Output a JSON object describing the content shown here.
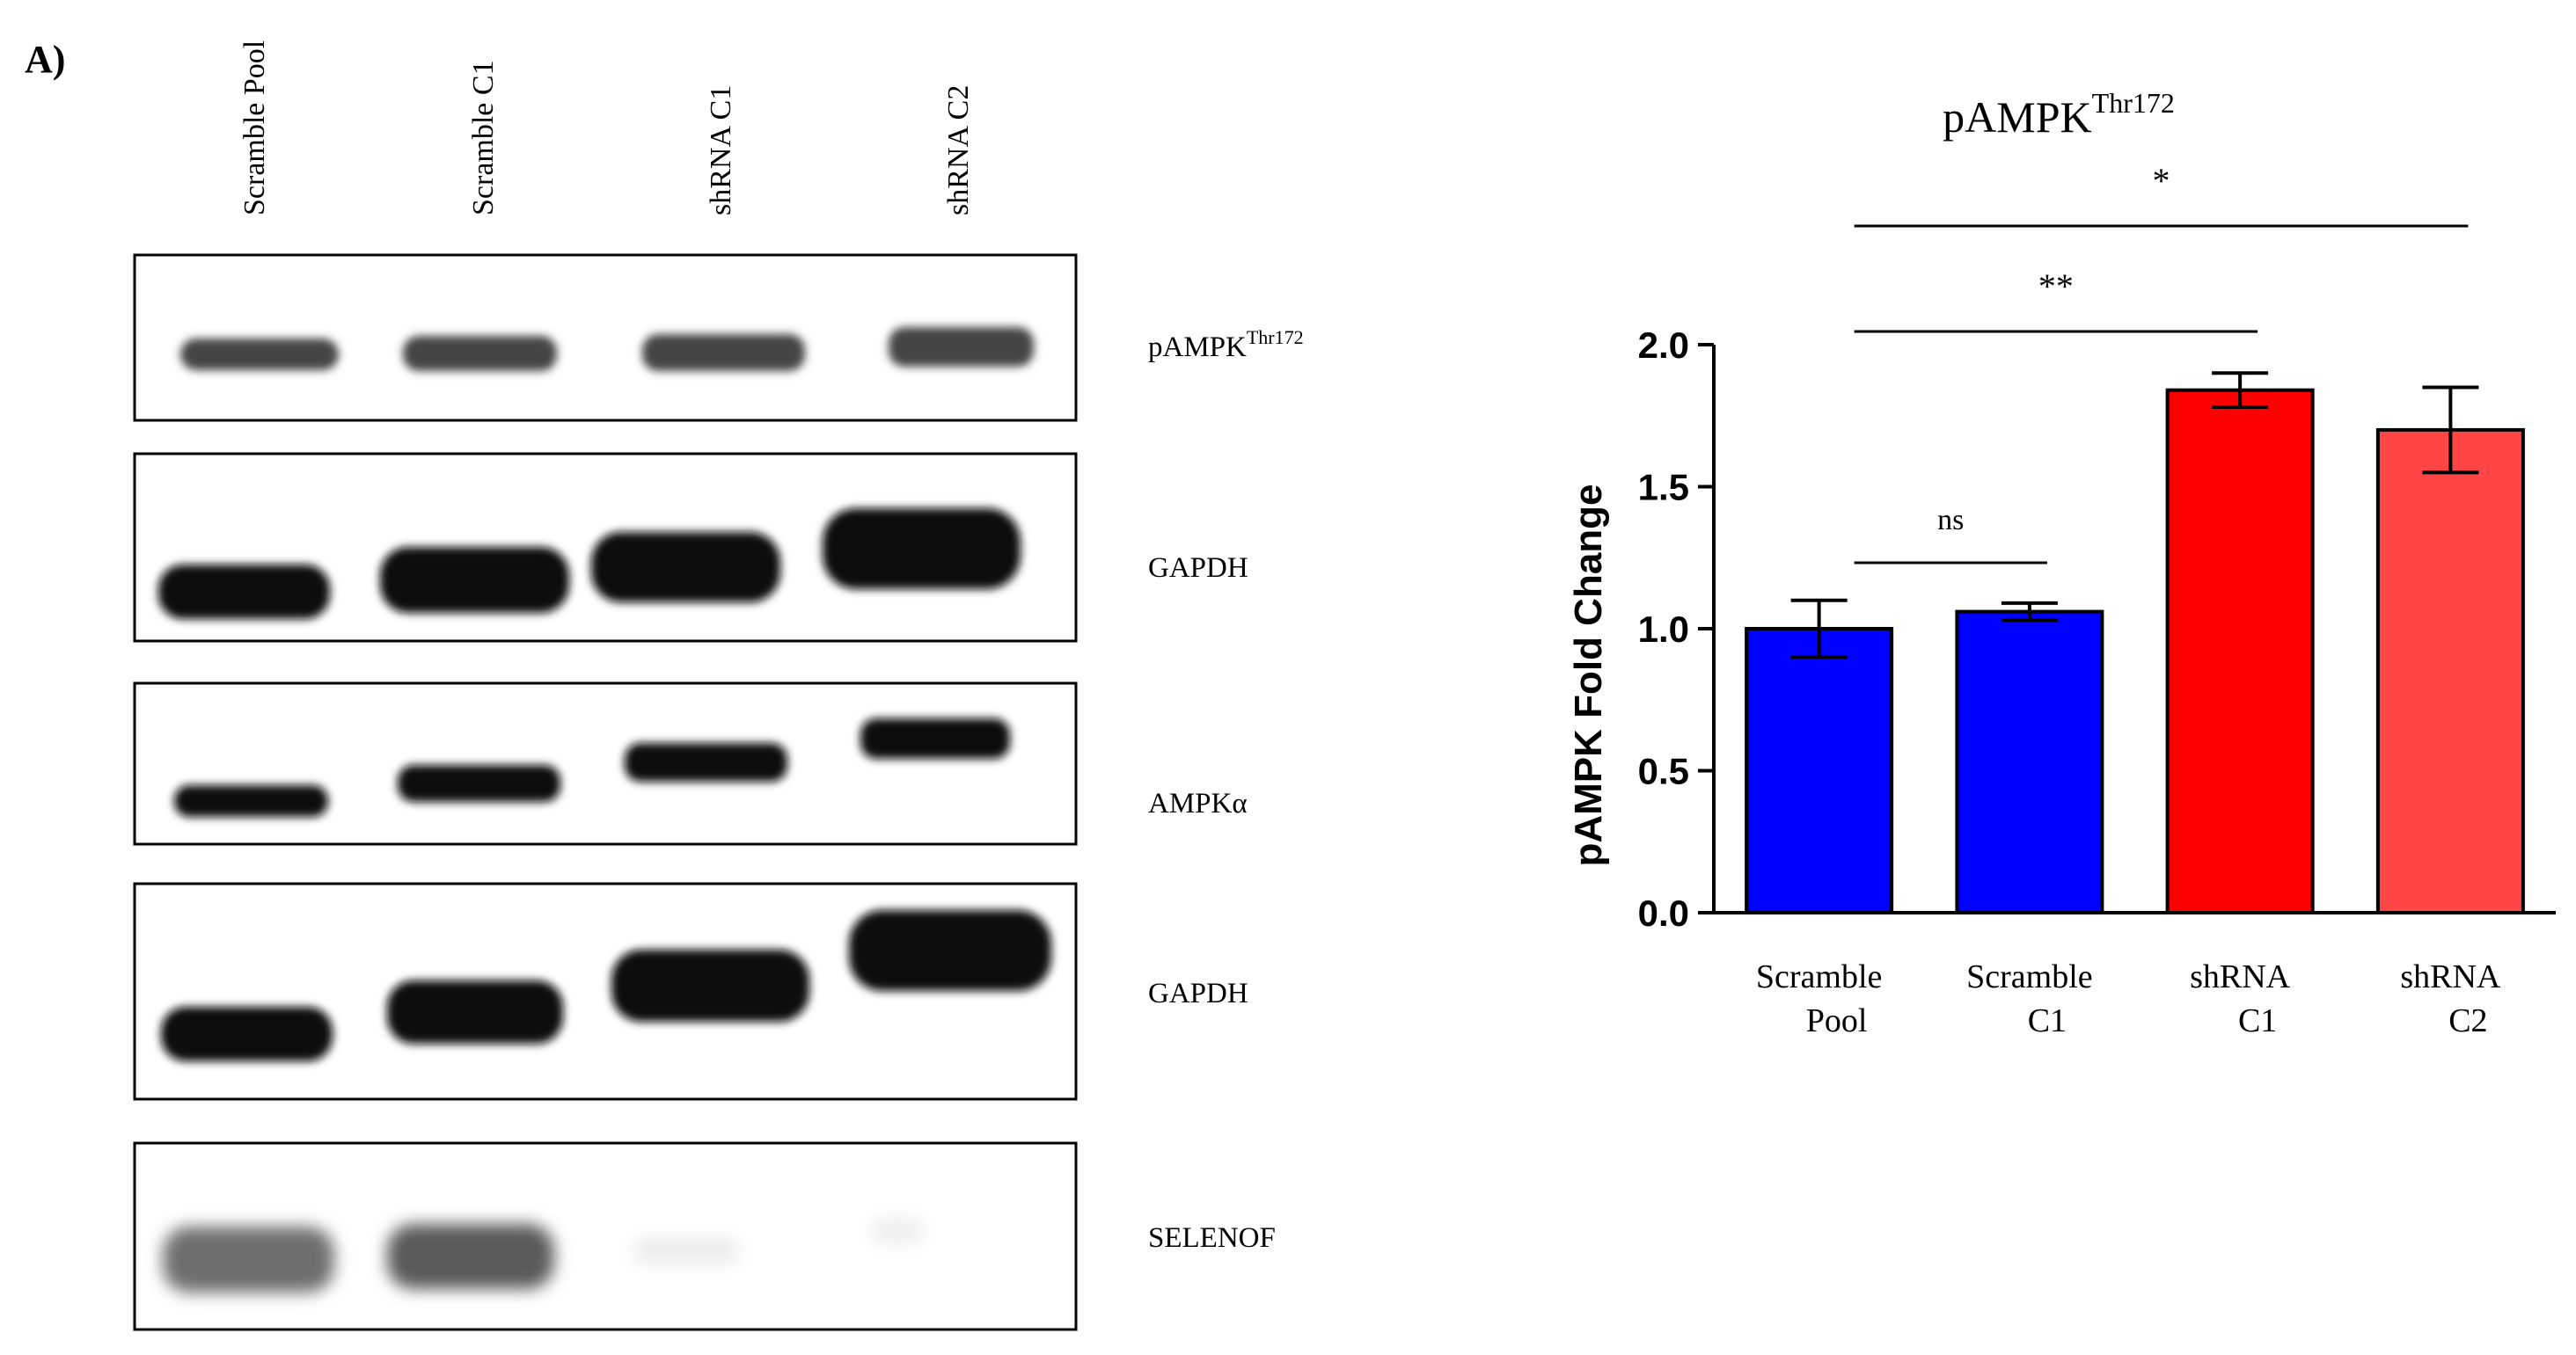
{
  "panel_label": "A)",
  "lanes": [
    "Scramble Pool",
    "Scramble C1",
    "shRNA C1",
    "shRNA C2"
  ],
  "blots": [
    {
      "base": "pAMPK",
      "sup": "Thr172"
    },
    {
      "base": "GAPDH",
      "sup": ""
    },
    {
      "base": "AMPKα",
      "sup": ""
    },
    {
      "base": "GAPDH",
      "sup": ""
    },
    {
      "base": "SELENOF",
      "sup": ""
    }
  ],
  "colors": {
    "blue": "#0000ff",
    "red": "#ff0000",
    "light_red": "#ff4545",
    "band_dark": "#0a0a0a",
    "band_gray": "#6e6e6e"
  },
  "chart_data": {
    "type": "bar",
    "title": "pAMPK",
    "title_sup": "Thr172",
    "ylabel": "pAMPK Fold Change",
    "xlabel": "",
    "ylim": [
      0,
      2.0
    ],
    "yticks": [
      "0.0",
      "0.5",
      "1.0",
      "1.5",
      "2.0"
    ],
    "categories": [
      [
        "Scramble",
        "Pool"
      ],
      [
        "Scramble",
        "C1"
      ],
      [
        "shRNA",
        "C1"
      ],
      [
        "shRNA",
        "C2"
      ]
    ],
    "values": [
      1.0,
      1.06,
      1.84,
      1.7
    ],
    "errors": [
      0.1,
      0.03,
      0.06,
      0.15
    ],
    "bar_colors": [
      "#0000ff",
      "#0000ff",
      "#ff0000",
      "#ff4545"
    ],
    "grid": false,
    "significance": [
      {
        "label": "ns",
        "from": 0,
        "to": 1
      },
      {
        "label": "**",
        "from": 0,
        "to": 2
      },
      {
        "label": "*",
        "from": 0,
        "to": 3
      }
    ]
  }
}
